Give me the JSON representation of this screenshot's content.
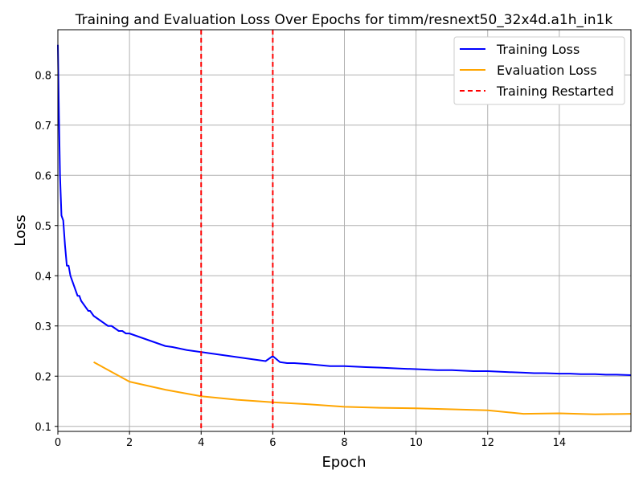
{
  "chart_data": {
    "type": "line",
    "title": "Training and Evaluation Loss Over Epochs for timm/resnext50_32x4d.a1h_in1k",
    "xlabel": "Epoch",
    "ylabel": "Loss",
    "xlim": [
      0,
      16
    ],
    "ylim": [
      0.09,
      0.89
    ],
    "xticks": [
      0,
      2,
      4,
      6,
      8,
      10,
      12,
      14
    ],
    "yticks": [
      0.1,
      0.2,
      0.3,
      0.4,
      0.5,
      0.6,
      0.7,
      0.8
    ],
    "grid": true,
    "legend_position": "top-right",
    "series": [
      {
        "name": "Training Loss",
        "color": "#0000ff",
        "style": "solid",
        "x": [
          0.0,
          0.03,
          0.06,
          0.1,
          0.15,
          0.2,
          0.25,
          0.3,
          0.35,
          0.4,
          0.45,
          0.5,
          0.55,
          0.6,
          0.65,
          0.7,
          0.75,
          0.8,
          0.85,
          0.9,
          0.95,
          1.0,
          1.1,
          1.2,
          1.3,
          1.4,
          1.5,
          1.6,
          1.7,
          1.8,
          1.9,
          2.0,
          2.2,
          2.4,
          2.6,
          2.8,
          3.0,
          3.2,
          3.4,
          3.6,
          3.8,
          4.0,
          4.2,
          4.4,
          4.6,
          4.8,
          5.0,
          5.2,
          5.4,
          5.6,
          5.8,
          6.0,
          6.2,
          6.4,
          6.6,
          6.8,
          7.0,
          7.3,
          7.6,
          8.0,
          8.3,
          8.6,
          9.0,
          9.3,
          9.6,
          10.0,
          10.3,
          10.6,
          11.0,
          11.3,
          11.6,
          12.0,
          12.3,
          12.6,
          13.0,
          13.3,
          13.6,
          14.0,
          14.3,
          14.6,
          15.0,
          15.3,
          15.6,
          16.0
        ],
        "values": [
          0.86,
          0.72,
          0.6,
          0.52,
          0.51,
          0.46,
          0.42,
          0.42,
          0.4,
          0.39,
          0.38,
          0.37,
          0.36,
          0.36,
          0.35,
          0.345,
          0.34,
          0.335,
          0.33,
          0.33,
          0.325,
          0.32,
          0.315,
          0.31,
          0.305,
          0.3,
          0.3,
          0.295,
          0.29,
          0.29,
          0.285,
          0.285,
          0.28,
          0.275,
          0.27,
          0.265,
          0.26,
          0.258,
          0.255,
          0.252,
          0.25,
          0.248,
          0.246,
          0.244,
          0.242,
          0.24,
          0.238,
          0.236,
          0.234,
          0.232,
          0.23,
          0.24,
          0.228,
          0.226,
          0.226,
          0.225,
          0.224,
          0.222,
          0.22,
          0.22,
          0.219,
          0.218,
          0.217,
          0.216,
          0.215,
          0.214,
          0.213,
          0.212,
          0.212,
          0.211,
          0.21,
          0.21,
          0.209,
          0.208,
          0.207,
          0.206,
          0.206,
          0.205,
          0.205,
          0.204,
          0.204,
          0.203,
          0.203,
          0.202
        ]
      },
      {
        "name": "Evaluation Loss",
        "color": "#ffa500",
        "style": "solid",
        "x": [
          1,
          2,
          3,
          4,
          5,
          6,
          7,
          8,
          9,
          10,
          11,
          12,
          13,
          14,
          15,
          16
        ],
        "values": [
          0.228,
          0.189,
          0.173,
          0.16,
          0.153,
          0.148,
          0.144,
          0.139,
          0.137,
          0.136,
          0.134,
          0.132,
          0.125,
          0.126,
          0.124,
          0.125
        ]
      }
    ],
    "vertical_lines": {
      "name": "Training Restarted",
      "color": "#ff0000",
      "style": "dashed",
      "x": [
        4,
        6
      ]
    }
  }
}
